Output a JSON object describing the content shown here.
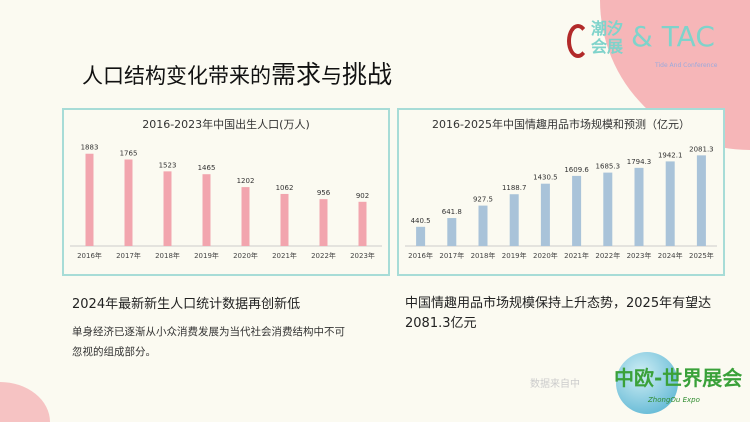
{
  "title": {
    "normal": "人口结构变化带来的",
    "emph1": "需求",
    "mid": "与",
    "emph2": "挑战"
  },
  "logo": {
    "cn1": "潮汐",
    "cn2": "会展",
    "tac": "& TAC",
    "sub": "Tide And Conference"
  },
  "chart_data": [
    {
      "type": "bar",
      "title": "2016-2023年中国出生人口(万人)",
      "categories": [
        "2016年",
        "2017年",
        "2018年",
        "2019年",
        "2020年",
        "2021年",
        "2022年",
        "2023年"
      ],
      "values": [
        1883,
        1765,
        1523,
        1465,
        1202,
        1062,
        956,
        902
      ],
      "labels": [
        "1883",
        "1765",
        "1523",
        "1465",
        "1202",
        "1062",
        "956",
        "902"
      ],
      "ylim": [
        0,
        2000
      ],
      "color": "#f2a5ae"
    },
    {
      "type": "bar",
      "title": "2016-2025年中国情趣用品市场规模和预测（亿元）",
      "categories": [
        "2016年",
        "2017年",
        "2018年",
        "2019年",
        "2020年",
        "2021年",
        "2022年",
        "2023年",
        "2024年",
        "2025年"
      ],
      "values": [
        440.5,
        641.8,
        927.5,
        1188.7,
        1430.5,
        1609.6,
        1685.3,
        1794.3,
        1942.1,
        2081.3
      ],
      "labels": [
        "440.5",
        "641.8",
        "927.5",
        "1188.7",
        "1430.5",
        "1609.6",
        "1685.3",
        "1794.3",
        "1942.1",
        "2081.3"
      ],
      "ylim": [
        0,
        2250
      ],
      "color": "#a9c3d9"
    }
  ],
  "left_text": {
    "headline": "2024年最新新生人口统计数据再创新低",
    "body": "单身经济已逐渐从小众消费发展为当代社会消费结构中不可忽视的组成部分。"
  },
  "right_text": {
    "headline": "中国情趣用品市场规模保持上升态势，2025年有望达2081.3亿元"
  },
  "source": "数据来自中",
  "expo": {
    "name": "中欧-世界展会",
    "en": "ZhongOu Expo"
  }
}
